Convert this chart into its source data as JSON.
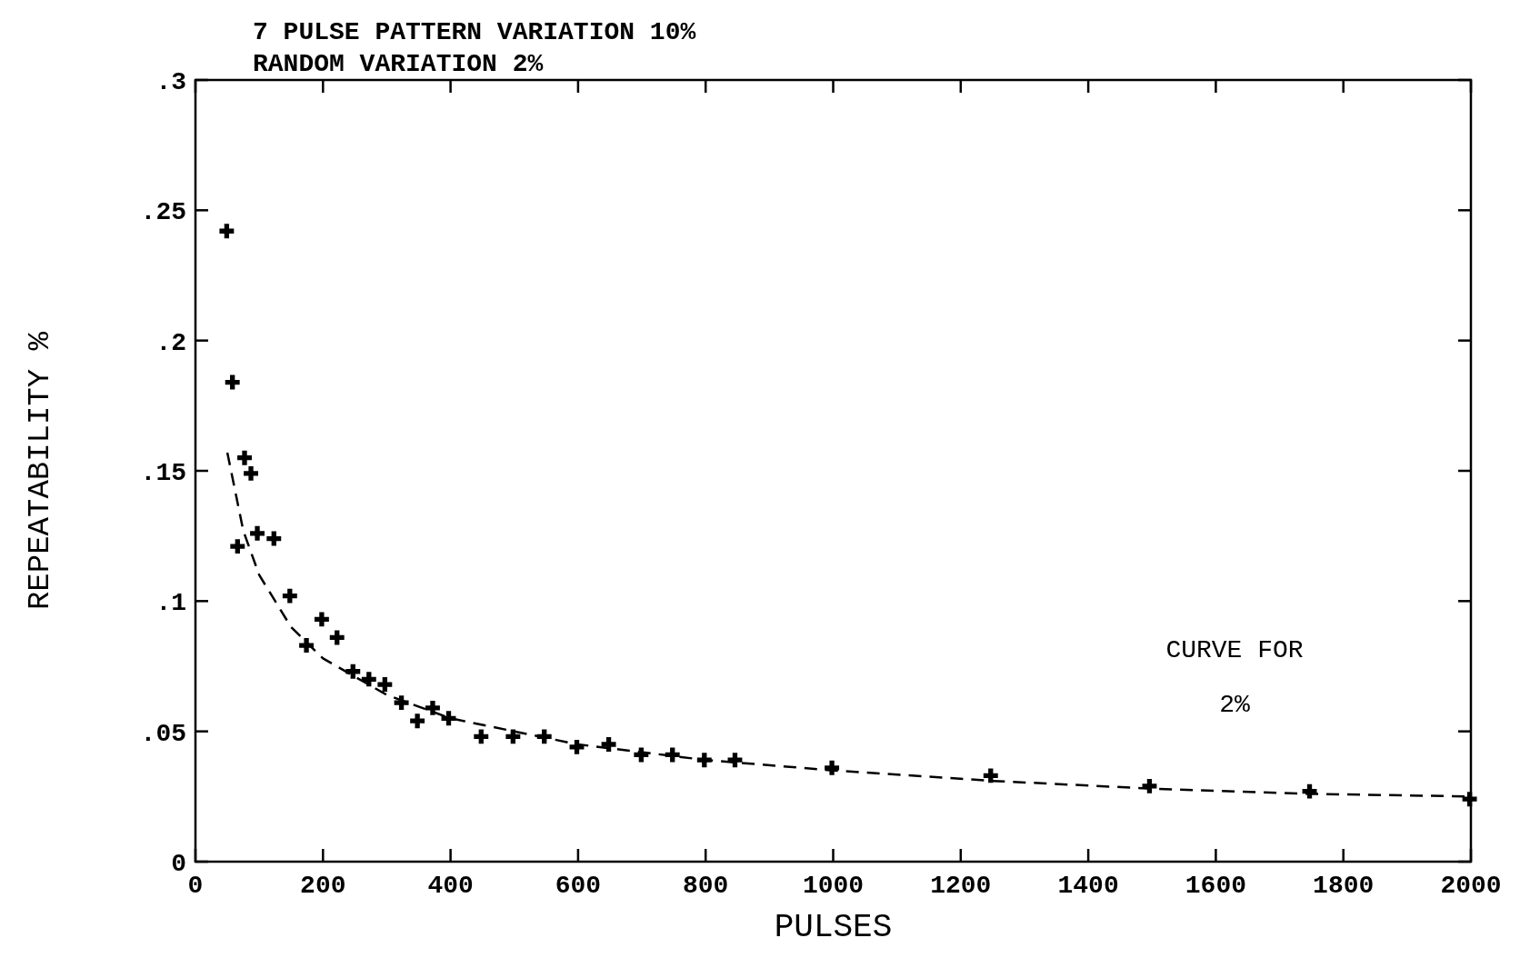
{
  "chart_data": {
    "type": "scatter",
    "title": "7 PULSE PATTERN  VARIATION 10%",
    "subtitle": "RANDOM VARIATION  2%",
    "xlabel": "PULSES",
    "ylabel": "REPEATABILITY  %",
    "annotations": [
      "CURVE FOR",
      "2%"
    ],
    "xlim": [
      0,
      2000
    ],
    "ylim": [
      0,
      0.3
    ],
    "xticks": [
      0,
      200,
      400,
      600,
      800,
      1000,
      1200,
      1400,
      1600,
      1800,
      2000
    ],
    "yticks": [
      {
        "value": 0,
        "label": "0"
      },
      {
        "value": 0.05,
        "label": ".05"
      },
      {
        "value": 0.1,
        "label": ".1"
      },
      {
        "value": 0.15,
        "label": ".15"
      },
      {
        "value": 0.2,
        "label": ".2"
      },
      {
        "value": 0.25,
        "label": ".25"
      },
      {
        "value": 0.3,
        "label": ".3"
      }
    ],
    "grid": false,
    "series": [
      {
        "marker": "cross",
        "color": "#000000",
        "x": [
          49,
          58,
          77,
          87,
          66,
          97,
          123,
          148,
          174,
          198,
          222,
          247,
          272,
          297,
          323,
          348,
          372,
          397,
          448,
          498,
          547,
          598,
          648,
          699,
          748,
          798,
          846,
          998,
          1247,
          1496,
          1747,
          1998
        ],
        "values": [
          0.242,
          0.184,
          0.155,
          0.149,
          0.121,
          0.126,
          0.124,
          0.102,
          0.083,
          0.093,
          0.086,
          0.073,
          0.07,
          0.068,
          0.061,
          0.054,
          0.059,
          0.055,
          0.048,
          0.048,
          0.048,
          0.044,
          0.045,
          0.041,
          0.041,
          0.039,
          0.039,
          0.036,
          0.033,
          0.029,
          0.027,
          0.024
        ]
      },
      {
        "type": "line",
        "marker": "none",
        "line_style": "dashed",
        "color": "#000000",
        "x": [
          50,
          75,
          100,
          150,
          200,
          300,
          400,
          600,
          800,
          1000,
          1250,
          1500,
          1750,
          2000
        ],
        "values": [
          0.157,
          0.127,
          0.11,
          0.09,
          0.078,
          0.064,
          0.055,
          0.045,
          0.039,
          0.035,
          0.031,
          0.028,
          0.026,
          0.025
        ]
      }
    ]
  }
}
